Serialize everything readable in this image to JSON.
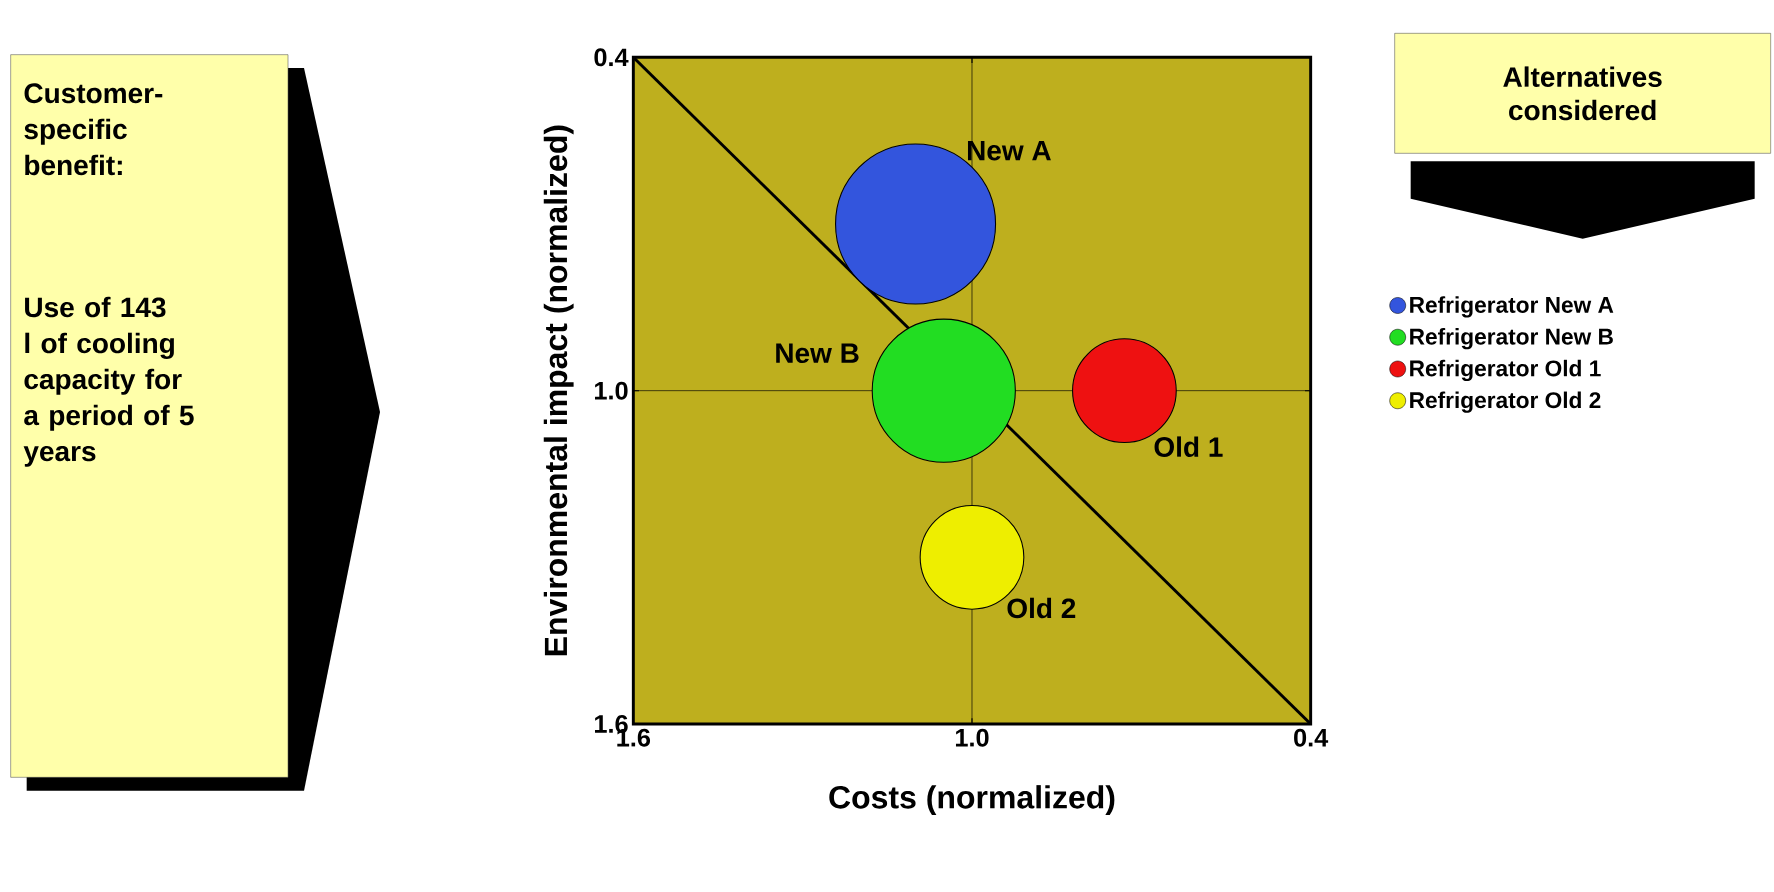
{
  "chart_data": {
    "type": "bubble",
    "xlabel": "Costs (normalized)",
    "ylabel": "Environmental impact (normalized)",
    "xlim": [
      1.6,
      0.4
    ],
    "ylim": [
      1.6,
      0.4
    ],
    "xticks": [
      {
        "value": 1.6,
        "label": "1.6"
      },
      {
        "value": 1.0,
        "label": "1.0"
      },
      {
        "value": 0.4,
        "label": "0.4"
      }
    ],
    "yticks": [
      {
        "value": 1.6,
        "label": "1.6"
      },
      {
        "value": 1.0,
        "label": "1.0"
      },
      {
        "value": 0.4,
        "label": "0.4"
      }
    ],
    "grid": true,
    "legend": "right",
    "series": [
      {
        "name": "Refrigerator New A",
        "color": "#3355dd",
        "x": [
          1.1
        ],
        "values": [
          0.7
        ],
        "sizes": [
          1
        ]
      },
      {
        "name": "Refrigerator New B",
        "color": "#22dd22",
        "x": [
          1.05
        ],
        "values": [
          1.0
        ],
        "sizes": [
          0.8
        ]
      },
      {
        "name": "Refrigerator Old 1",
        "color": "#ee1111",
        "x": [
          0.73
        ],
        "values": [
          1.0
        ],
        "sizes": [
          0.42
        ]
      },
      {
        "name": "Refrigerator Old 2",
        "color": "#eeee00",
        "x": [
          1.0
        ],
        "values": [
          1.3
        ],
        "sizes": [
          0.42
        ]
      },
      {
        "type": "line",
        "color": "#000000",
        "x": [
          1.6,
          0.4
        ],
        "values": [
          0.4,
          1.6
        ]
      }
    ],
    "annotations": [
      "Customer-specific benefit:",
      "Use of 143 l of cooling capacity for a period of 5 years",
      "Alternatives considered",
      "New A",
      "New B",
      "Old 1",
      "Old 2"
    ]
  }
}
